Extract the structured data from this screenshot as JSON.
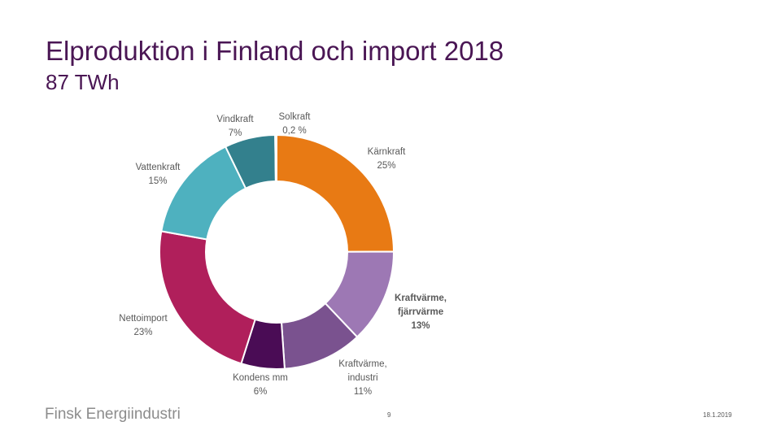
{
  "slide": {
    "title": "Elproduktion i Finland och import 2018",
    "subtitle": "87 TWh"
  },
  "footer": {
    "logo_text": "Finsk Energiindustri",
    "page_number": "9",
    "date": "18.1.2019"
  },
  "chart_data": {
    "type": "pie",
    "variant": "donut",
    "title": "Elproduktion i Finland och import 2018",
    "total_label": "87 TWh",
    "slices": [
      {
        "name": "Kärnkraft",
        "value": 25,
        "label_lines": [
          "Kärnkraft",
          "25%"
        ],
        "color": "#e87a14",
        "label_bold": false
      },
      {
        "name": "Kraftvärme, fjärrvärme",
        "value": 13,
        "label_lines": [
          "Kraftvärme,",
          "fjärrvärme",
          "13%"
        ],
        "color": "#9d78b4",
        "label_bold": true
      },
      {
        "name": "Kraftvärme, industri",
        "value": 11,
        "label_lines": [
          "Kraftvärme,",
          "industri",
          "11%"
        ],
        "color": "#7a528f",
        "label_bold": false
      },
      {
        "name": "Kondens mm",
        "value": 6,
        "label_lines": [
          "Kondens mm",
          "6%"
        ],
        "color": "#4a0c55",
        "label_bold": false
      },
      {
        "name": "Nettoimport",
        "value": 23,
        "label_lines": [
          "Nettoimport",
          "23%"
        ],
        "color": "#b01f5b",
        "label_bold": false
      },
      {
        "name": "Vattenkraft",
        "value": 15,
        "label_lines": [
          "Vattenkraft",
          "15%"
        ],
        "color": "#4eb1bf",
        "label_bold": false
      },
      {
        "name": "Vindkraft",
        "value": 7,
        "label_lines": [
          "Vindkraft",
          "7%"
        ],
        "color": "#33808d",
        "label_bold": false
      },
      {
        "name": "Solkraft",
        "value": 0.2,
        "label_lines": [
          "Solkraft",
          "0,2 %"
        ],
        "color": "#9cbf3b",
        "label_bold": false
      }
    ]
  }
}
